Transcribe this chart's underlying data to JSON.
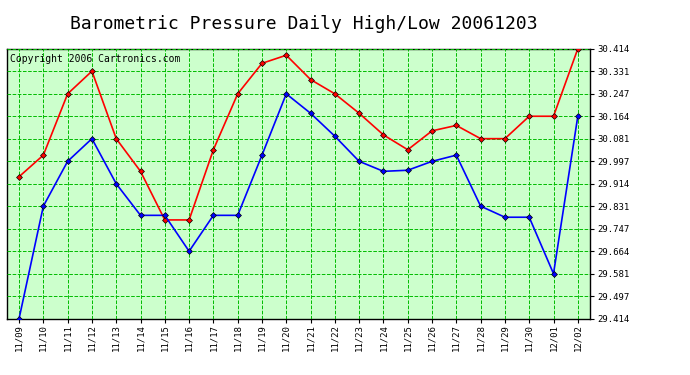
{
  "title": "Barometric Pressure Daily High/Low 20061203",
  "copyright": "Copyright 2006 Cartronics.com",
  "x_labels": [
    "11/09",
    "11/10",
    "11/11",
    "11/12",
    "11/13",
    "11/14",
    "11/15",
    "11/16",
    "11/17",
    "11/18",
    "11/19",
    "11/20",
    "11/21",
    "11/22",
    "11/23",
    "11/24",
    "11/25",
    "11/26",
    "11/27",
    "11/28",
    "11/29",
    "11/30",
    "12/01",
    "12/02"
  ],
  "high_values": [
    29.94,
    30.02,
    30.247,
    30.331,
    30.081,
    29.96,
    29.78,
    29.78,
    30.04,
    30.247,
    30.36,
    30.39,
    30.3,
    30.247,
    30.175,
    30.095,
    30.04,
    30.11,
    30.13,
    30.081,
    30.081,
    30.164,
    30.164,
    30.414
  ],
  "low_values": [
    29.414,
    29.831,
    29.997,
    30.081,
    29.914,
    29.797,
    29.797,
    29.664,
    29.797,
    29.797,
    30.02,
    30.247,
    30.175,
    30.09,
    29.997,
    29.96,
    29.964,
    29.997,
    30.02,
    29.831,
    29.79,
    29.79,
    29.581,
    30.164
  ],
  "y_ticks": [
    29.414,
    29.497,
    29.581,
    29.664,
    29.747,
    29.831,
    29.914,
    29.997,
    30.081,
    30.164,
    30.247,
    30.331,
    30.414
  ],
  "y_min": 29.414,
  "y_max": 30.414,
  "high_color": "#ff0000",
  "low_color": "#0000ff",
  "bg_color": "#ffffff",
  "plot_bg_color": "#ccffcc",
  "grid_color": "#00bb00",
  "border_color": "#000000",
  "title_fontsize": 13,
  "copyright_fontsize": 7,
  "marker": "D",
  "marker_size": 3,
  "line_width": 1.2
}
